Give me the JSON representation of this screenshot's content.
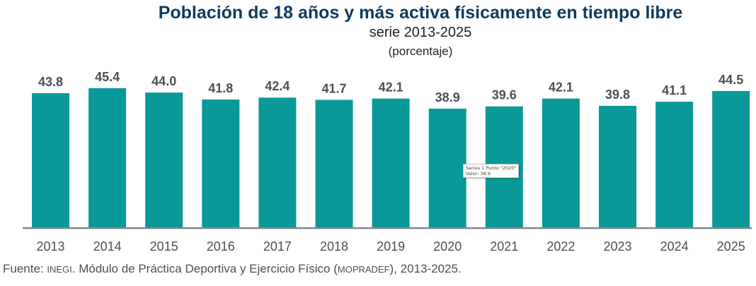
{
  "colors": {
    "bar": "#0a9999",
    "title": "#0f3a5f",
    "axis": "#7f8790",
    "label": "#4a4f57"
  },
  "chart_data": {
    "type": "bar",
    "title": "Población de 18 años y más activa físicamente en tiempo libre",
    "subtitle": "serie 2013-2025",
    "unit_label": "(porcentaje)",
    "xlabel": "",
    "ylabel": "",
    "categories": [
      "2013",
      "2014",
      "2015",
      "2016",
      "2017",
      "2018",
      "2019",
      "2020",
      "2021",
      "2022",
      "2023",
      "2024",
      "2025"
    ],
    "values": [
      43.8,
      45.4,
      44.0,
      41.8,
      42.4,
      41.7,
      42.1,
      38.9,
      39.6,
      42.1,
      39.8,
      41.1,
      44.5
    ],
    "value_labels": [
      "43.8",
      "45.4",
      "44.0",
      "41.8",
      "42.4",
      "41.7",
      "42.1",
      "38.9",
      "39.6",
      "42.1",
      "39.8",
      "41.1",
      "44.5"
    ],
    "ylim": [
      0,
      46
    ],
    "grid": false,
    "legend": "none",
    "tooltip": {
      "line1": "Series 1 Punto \"2020\"",
      "line2": "Valor: 38.9"
    }
  },
  "source": {
    "prefix": "Fuente: ",
    "org": "INEGI",
    "middle": ". Módulo de Práctica Deportiva y Ejercicio Físico (",
    "acronym": "MOPRADEF",
    "suffix": "), 2013-2025."
  }
}
